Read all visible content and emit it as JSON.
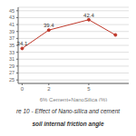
{
  "chart_data": {
    "type": "line",
    "x": [
      0,
      2,
      5,
      7
    ],
    "values": [
      34.1,
      39.4,
      42.4,
      38.0
    ],
    "data_labels": true,
    "value_labels": [
      "34.1",
      "39.4",
      "42.4",
      null
    ],
    "xlabel": "6% Cement+NanoSilica (%)",
    "xlim": [
      -0.3,
      8
    ],
    "xticks": [
      0,
      2,
      5
    ],
    "ylim": [
      24,
      46
    ],
    "yticks": [
      25,
      27,
      29,
      31,
      33,
      35,
      37,
      39,
      41,
      43,
      45
    ],
    "grid": true,
    "color": "#c0392b",
    "marker": "o",
    "annotations": [
      "re 10 - Effect of Nano-silica and cement",
      "soil internal friction angle"
    ]
  }
}
